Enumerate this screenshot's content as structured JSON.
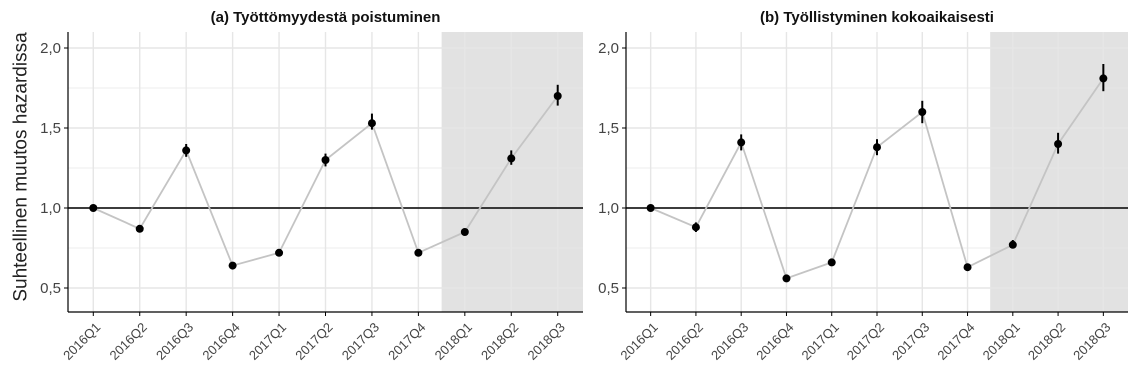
{
  "y_axis_label": "Suhteellinen muutos hazardissa",
  "chart_data": [
    {
      "type": "scatter",
      "title": "(a) Työttömyydestä poistuminen",
      "categories": [
        "2016Q1",
        "2016Q2",
        "2016Q3",
        "2016Q4",
        "2017Q1",
        "2017Q2",
        "2017Q3",
        "2017Q4",
        "2018Q1",
        "2018Q2",
        "2018Q3"
      ],
      "values": [
        1.0,
        0.87,
        1.36,
        0.64,
        0.72,
        1.3,
        1.53,
        0.72,
        0.85,
        1.31,
        1.7
      ],
      "ci_low": [
        1.0,
        0.85,
        1.32,
        0.63,
        0.71,
        1.26,
        1.49,
        0.71,
        0.83,
        1.27,
        1.64
      ],
      "ci_high": [
        1.0,
        0.89,
        1.4,
        0.65,
        0.73,
        1.34,
        1.59,
        0.73,
        0.87,
        1.36,
        1.77
      ],
      "yticks": [
        0.5,
        1.0,
        1.5,
        2.0
      ],
      "ytick_labels": [
        "0,5",
        "1,0",
        "1,5",
        "2,0"
      ],
      "ylim": [
        0.35,
        2.1
      ],
      "reference_line": 1.0,
      "shaded_categories": [
        "2018Q1",
        "2018Q3"
      ],
      "grid": true
    },
    {
      "type": "scatter",
      "title": "(b) Työllistyminen kokoaikaisesti",
      "categories": [
        "2016Q1",
        "2016Q2",
        "2016Q3",
        "2016Q4",
        "2017Q1",
        "2017Q2",
        "2017Q3",
        "2017Q4",
        "2018Q1",
        "2018Q2",
        "2018Q3"
      ],
      "values": [
        1.0,
        0.88,
        1.41,
        0.56,
        0.66,
        1.38,
        1.6,
        0.63,
        0.77,
        1.4,
        1.81
      ],
      "ci_low": [
        1.0,
        0.85,
        1.36,
        0.55,
        0.65,
        1.33,
        1.53,
        0.62,
        0.75,
        1.34,
        1.73
      ],
      "ci_high": [
        1.0,
        0.91,
        1.46,
        0.57,
        0.67,
        1.43,
        1.67,
        0.64,
        0.8,
        1.47,
        1.9
      ],
      "yticks": [
        0.5,
        1.0,
        1.5,
        2.0
      ],
      "ytick_labels": [
        "0,5",
        "1,0",
        "1,5",
        "2,0"
      ],
      "ylim": [
        0.35,
        2.1
      ],
      "reference_line": 1.0,
      "shaded_categories": [
        "2018Q1",
        "2018Q3"
      ],
      "grid": true
    }
  ],
  "colors": {
    "background": "#ffffff",
    "grid": "#e6e6e6",
    "shade": "#e2e2e2",
    "connector": "#c4c4c4",
    "point": "#000000",
    "reference_line": "#000000"
  }
}
